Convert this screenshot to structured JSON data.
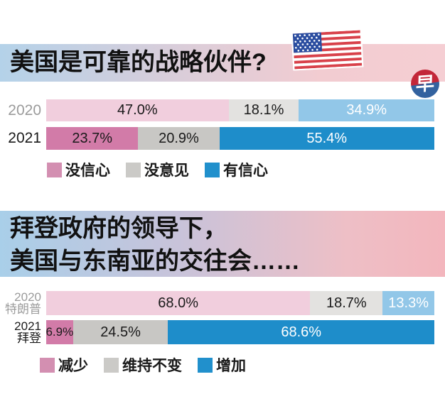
{
  "logo": {
    "glyph": "早",
    "top_color": "#c32739",
    "bottom_color": "#33629f"
  },
  "colors": {
    "band_blue": "#b4d2e9",
    "band_pink": "#f5ced3",
    "muted_pink": "#f1cedd",
    "muted_gray": "#e3e2e0",
    "muted_blue": "#92c7e8",
    "pink": "#d27ba8",
    "gray": "#c8c7c4",
    "blue": "#1e8dca"
  },
  "section1": {
    "title": "美国是可靠的战略伙伴?",
    "rows": [
      {
        "label_lines": [
          "2020"
        ],
        "label_color": "#9b9b9b",
        "segments": [
          {
            "text": "47.0%",
            "pct": 47.0,
            "bg": "#f1cedd",
            "fg": "#1a1a1a"
          },
          {
            "text": "18.1%",
            "pct": 18.1,
            "bg": "#e3e2e0",
            "fg": "#1a1a1a"
          },
          {
            "text": "34.9%",
            "pct": 34.9,
            "bg": "#92c7e8",
            "fg": "#ffffff"
          }
        ]
      },
      {
        "label_lines": [
          "2021"
        ],
        "label_color": "#1a1a1a",
        "segments": [
          {
            "text": "23.7%",
            "pct": 23.7,
            "bg": "#d27ba8",
            "fg": "#1a1a1a"
          },
          {
            "text": "20.9%",
            "pct": 20.9,
            "bg": "#c8c7c4",
            "fg": "#1a1a1a"
          },
          {
            "text": "55.4%",
            "pct": 55.4,
            "bg": "#1e8dca",
            "fg": "#ffffff"
          }
        ]
      }
    ],
    "legend": [
      {
        "label": "没信心",
        "color": "#d38fb1"
      },
      {
        "label": "没意见",
        "color": "#cbcac7"
      },
      {
        "label": "有信心",
        "color": "#2190cc"
      }
    ]
  },
  "section2": {
    "title_line1": "拜登政府的领导下，",
    "title_line2": "美国与东南亚的交往会……",
    "rows": [
      {
        "label_lines": [
          "2020",
          "特朗普"
        ],
        "label_color": "#9b9b9b",
        "segments": [
          {
            "text": "68.0%",
            "pct": 68.0,
            "bg": "#f1cedd",
            "fg": "#1a1a1a"
          },
          {
            "text": "18.7%",
            "pct": 18.7,
            "bg": "#e3e2e0",
            "fg": "#1a1a1a"
          },
          {
            "text": "13.3%",
            "pct": 13.3,
            "bg": "#92c7e8",
            "fg": "#ffffff"
          }
        ]
      },
      {
        "label_lines": [
          "2021",
          "拜登"
        ],
        "label_color": "#1a1a1a",
        "segments": [
          {
            "text": "6.9%",
            "pct": 6.9,
            "bg": "#d27ba8",
            "fg": "#1a1a1a"
          },
          {
            "text": "24.5%",
            "pct": 24.5,
            "bg": "#c8c7c4",
            "fg": "#1a1a1a"
          },
          {
            "text": "68.6%",
            "pct": 68.6,
            "bg": "#1e8dca",
            "fg": "#ffffff"
          }
        ]
      }
    ],
    "legend": [
      {
        "label": "减少",
        "color": "#d38fb1"
      },
      {
        "label": "维持不变",
        "color": "#cbcac7"
      },
      {
        "label": "增加",
        "color": "#2190cc"
      }
    ]
  },
  "chart_data": [
    {
      "type": "bar",
      "stacked": true,
      "orientation": "horizontal",
      "title": "美国是可靠的战略伙伴?",
      "categories": [
        "2020",
        "2021"
      ],
      "series": [
        {
          "name": "没信心",
          "values": [
            47.0,
            23.7
          ]
        },
        {
          "name": "没意见",
          "values": [
            18.1,
            20.9
          ]
        },
        {
          "name": "有信心",
          "values": [
            34.9,
            55.4
          ]
        }
      ],
      "unit": "%",
      "xlim": [
        0,
        100
      ],
      "legend_position": "bottom",
      "grid": false
    },
    {
      "type": "bar",
      "stacked": true,
      "orientation": "horizontal",
      "title": "拜登政府的领导下，美国与东南亚的交往会……",
      "categories": [
        "2020 特朗普",
        "2021 拜登"
      ],
      "series": [
        {
          "name": "减少",
          "values": [
            68.0,
            6.9
          ]
        },
        {
          "name": "维持不变",
          "values": [
            18.7,
            24.5
          ]
        },
        {
          "name": "增加",
          "values": [
            13.3,
            68.6
          ]
        }
      ],
      "unit": "%",
      "xlim": [
        0,
        100
      ],
      "legend_position": "bottom",
      "grid": false
    }
  ]
}
